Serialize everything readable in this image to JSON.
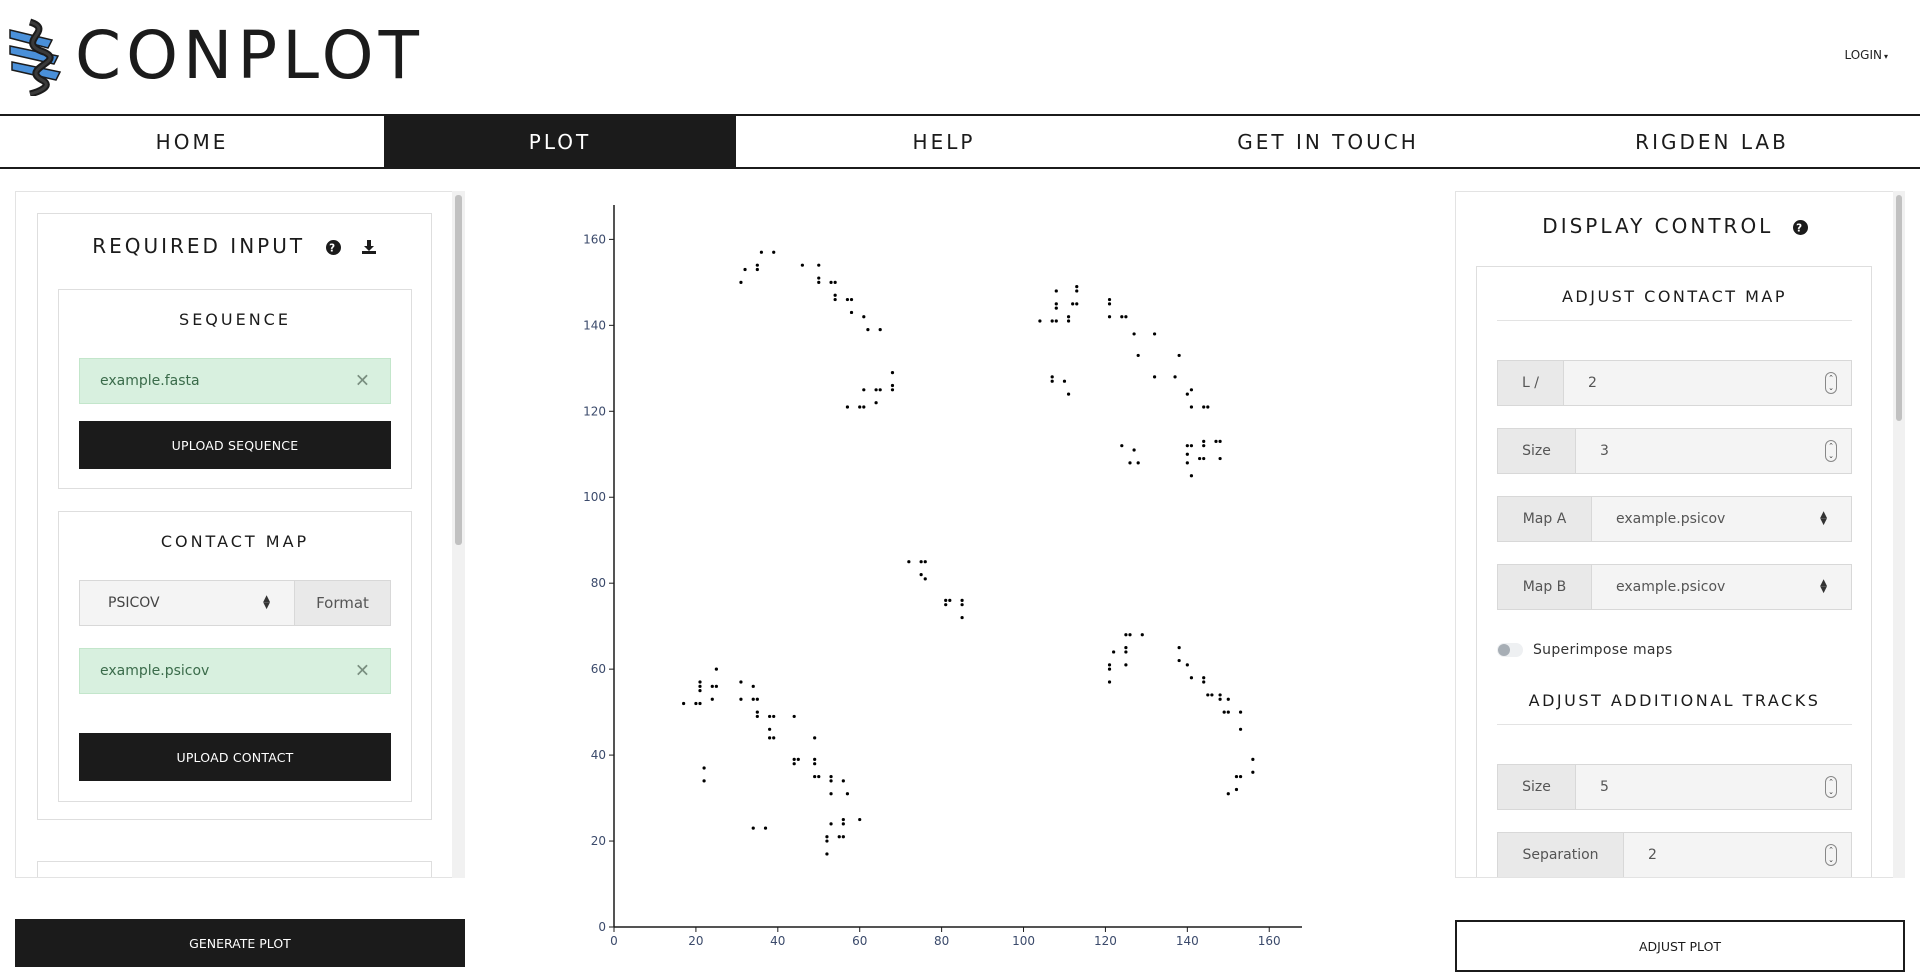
{
  "header": {
    "brand": "CONPLOT",
    "login_label": "LOGIN"
  },
  "nav": {
    "items": [
      {
        "label": "HOME"
      },
      {
        "label": "PLOT"
      },
      {
        "label": "HELP"
      },
      {
        "label": "GET IN TOUCH"
      },
      {
        "label": "RIGDEN LAB"
      }
    ],
    "active": "PLOT"
  },
  "required_input": {
    "title": "REQUIRED INPUT",
    "help_icon": "question-circle-icon",
    "download_icon": "download-icon",
    "sequence": {
      "title": "SEQUENCE",
      "file_name": "example.fasta",
      "upload_label": "UPLOAD SEQUENCE"
    },
    "contact_map": {
      "title": "CONTACT MAP",
      "format_value": "PSICOV",
      "format_label": "Format",
      "file_name": "example.psicov",
      "upload_label": "UPLOAD CONTACT"
    },
    "generate_label": "GENERATE PLOT"
  },
  "display_control": {
    "title": "DISPLAY CONTROL",
    "adjust_contact_map": {
      "title": "ADJUST CONTACT MAP",
      "l_label": "L /",
      "l_value": "2",
      "size_label": "Size",
      "size_value": "3",
      "map_a_label": "Map A",
      "map_a_value": "example.psicov",
      "map_b_label": "Map B",
      "map_b_value": "example.psicov",
      "superimpose_label": "Superimpose maps",
      "superimpose_on": false
    },
    "adjust_tracks": {
      "title": "ADJUST ADDITIONAL TRACKS",
      "size_label": "Size",
      "size_value": "5",
      "separation_label": "Separation",
      "separation_value": "2"
    },
    "adjust_label": "ADJUST PLOT"
  },
  "chart_data": {
    "type": "scatter",
    "xlim": [
      0,
      168
    ],
    "ylim": [
      0,
      168
    ],
    "x_ticks": [
      0,
      20,
      40,
      60,
      80,
      100,
      120,
      140,
      160
    ],
    "y_ticks": [
      0,
      20,
      40,
      60,
      80,
      100,
      120,
      140,
      160
    ],
    "marker_color": "#000000",
    "points": [
      [
        31,
        150
      ],
      [
        32,
        153
      ],
      [
        35,
        153
      ],
      [
        35,
        154
      ],
      [
        36,
        157
      ],
      [
        39,
        157
      ],
      [
        46,
        154
      ],
      [
        50,
        154
      ],
      [
        50,
        151
      ],
      [
        50,
        150
      ],
      [
        53,
        150
      ],
      [
        54,
        150
      ],
      [
        54,
        147
      ],
      [
        54,
        146
      ],
      [
        57,
        146
      ],
      [
        58,
        146
      ],
      [
        58,
        143
      ],
      [
        61,
        142
      ],
      [
        62,
        139
      ],
      [
        65,
        139
      ],
      [
        57,
        121
      ],
      [
        60,
        121
      ],
      [
        61,
        121
      ],
      [
        61,
        125
      ],
      [
        64,
        122
      ],
      [
        64,
        125
      ],
      [
        65,
        125
      ],
      [
        68,
        125
      ],
      [
        68,
        126
      ],
      [
        68,
        129
      ],
      [
        104,
        141
      ],
      [
        107,
        141
      ],
      [
        108,
        141
      ],
      [
        108,
        144
      ],
      [
        108,
        145
      ],
      [
        108,
        148
      ],
      [
        111,
        141
      ],
      [
        111,
        142
      ],
      [
        112,
        145
      ],
      [
        113,
        145
      ],
      [
        113,
        148
      ],
      [
        113,
        149
      ],
      [
        107,
        127
      ],
      [
        107,
        128
      ],
      [
        110,
        127
      ],
      [
        111,
        124
      ],
      [
        121,
        142
      ],
      [
        121,
        145
      ],
      [
        121,
        146
      ],
      [
        124,
        142
      ],
      [
        125,
        142
      ],
      [
        127,
        138
      ],
      [
        128,
        133
      ],
      [
        132,
        138
      ],
      [
        132,
        128
      ],
      [
        137,
        128
      ],
      [
        138,
        133
      ],
      [
        140,
        124
      ],
      [
        141,
        125
      ],
      [
        141,
        121
      ],
      [
        144,
        121
      ],
      [
        145,
        121
      ],
      [
        124,
        112
      ],
      [
        126,
        108
      ],
      [
        127,
        111
      ],
      [
        128,
        108
      ],
      [
        140,
        112
      ],
      [
        140,
        110
      ],
      [
        140,
        108
      ],
      [
        141,
        105
      ],
      [
        141,
        112
      ],
      [
        143,
        109
      ],
      [
        144,
        109
      ],
      [
        144,
        112
      ],
      [
        144,
        113
      ],
      [
        147,
        113
      ],
      [
        148,
        113
      ],
      [
        148,
        109
      ],
      [
        72,
        85
      ],
      [
        75,
        85
      ],
      [
        75,
        82
      ],
      [
        76,
        85
      ],
      [
        76,
        81
      ],
      [
        81,
        75
      ],
      [
        81,
        76
      ],
      [
        82,
        76
      ],
      [
        85,
        76
      ],
      [
        85,
        75
      ],
      [
        85,
        72
      ],
      [
        17,
        52
      ],
      [
        20,
        52
      ],
      [
        21,
        52
      ],
      [
        21,
        55
      ],
      [
        21,
        56
      ],
      [
        21,
        57
      ],
      [
        24,
        53
      ],
      [
        24,
        56
      ],
      [
        25,
        56
      ],
      [
        25,
        60
      ],
      [
        31,
        57
      ],
      [
        31,
        53
      ],
      [
        34,
        56
      ],
      [
        34,
        53
      ],
      [
        35,
        53
      ],
      [
        35,
        50
      ],
      [
        35,
        49
      ],
      [
        38,
        49
      ],
      [
        38,
        46
      ],
      [
        38,
        44
      ],
      [
        39,
        44
      ],
      [
        39,
        49
      ],
      [
        22,
        37
      ],
      [
        22,
        34
      ],
      [
        44,
        49
      ],
      [
        44,
        39
      ],
      [
        44,
        38
      ],
      [
        45,
        39
      ],
      [
        49,
        44
      ],
      [
        49,
        39
      ],
      [
        49,
        38
      ],
      [
        49,
        35
      ],
      [
        50,
        35
      ],
      [
        53,
        35
      ],
      [
        53,
        34
      ],
      [
        53,
        31
      ],
      [
        56,
        34
      ],
      [
        57,
        31
      ],
      [
        34,
        23
      ],
      [
        37,
        23
      ],
      [
        52,
        17
      ],
      [
        52,
        20
      ],
      [
        52,
        21
      ],
      [
        53,
        24
      ],
      [
        55,
        21
      ],
      [
        56,
        21
      ],
      [
        56,
        24
      ],
      [
        56,
        25
      ],
      [
        60,
        25
      ],
      [
        121,
        57
      ],
      [
        121,
        60
      ],
      [
        121,
        61
      ],
      [
        122,
        64
      ],
      [
        125,
        61
      ],
      [
        125,
        64
      ],
      [
        125,
        65
      ],
      [
        125,
        68
      ],
      [
        126,
        68
      ],
      [
        129,
        68
      ],
      [
        138,
        65
      ],
      [
        138,
        62
      ],
      [
        140,
        61
      ],
      [
        141,
        58
      ],
      [
        144,
        58
      ],
      [
        144,
        57
      ],
      [
        145,
        54
      ],
      [
        146,
        54
      ],
      [
        148,
        54
      ],
      [
        148,
        53
      ],
      [
        149,
        50
      ],
      [
        150,
        50
      ],
      [
        150,
        53
      ],
      [
        153,
        50
      ],
      [
        153,
        46
      ],
      [
        150,
        31
      ],
      [
        152,
        32
      ],
      [
        152,
        35
      ],
      [
        153,
        35
      ],
      [
        156,
        36
      ],
      [
        156,
        39
      ]
    ]
  }
}
